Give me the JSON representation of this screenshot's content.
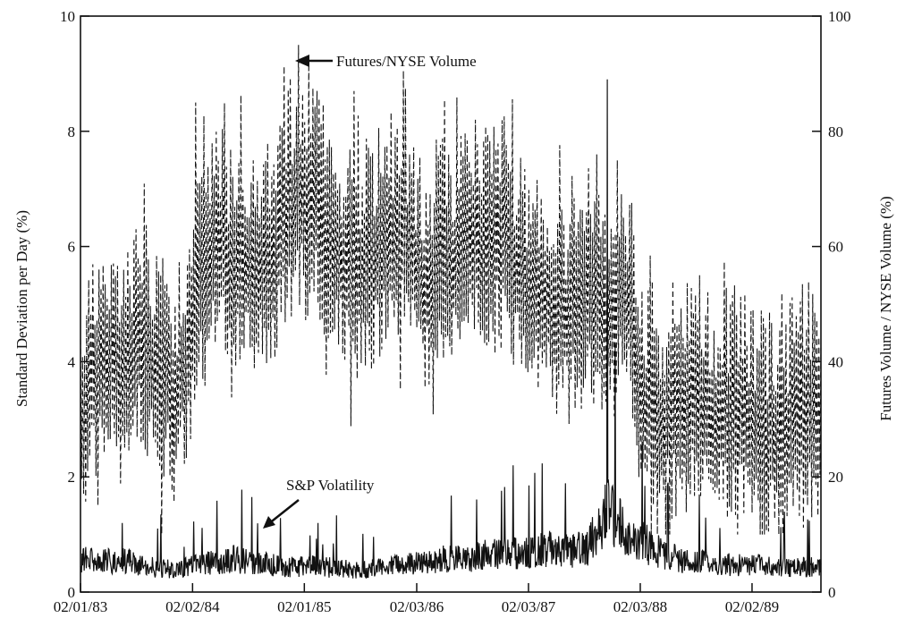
{
  "chart_data": {
    "type": "line",
    "left_axis": {
      "label": "Standard Deviation per Day (%)",
      "ylim": [
        0,
        10
      ],
      "ticks": [
        0,
        2,
        4,
        6,
        8,
        10
      ],
      "tick_labels": [
        "0",
        "2",
        "4",
        "6",
        "8",
        "10"
      ]
    },
    "right_axis": {
      "label": "Futures Volume / NYSE Volume (%)",
      "ylim": [
        0,
        100
      ],
      "ticks": [
        0,
        20,
        40,
        60,
        80,
        100
      ],
      "tick_labels": [
        "0",
        "20",
        "40",
        "60",
        "80",
        "100"
      ]
    },
    "x_axis": {
      "ticks": [
        "1983-02-01",
        "1984-02-02",
        "1985-02-01",
        "1986-02-03",
        "1987-02-03",
        "1988-02-03",
        "1989-02-02"
      ],
      "tick_labels": [
        "02/01/83",
        "02/02/84",
        "02/01/85",
        "02/03/86",
        "02/03/87",
        "02/03/88",
        "02/02/89"
      ],
      "xlim": [
        "1983-02-01",
        "1989-09-15"
      ]
    },
    "grid": false,
    "series": [
      {
        "name": "Futures/NYSE Volume",
        "axis": "right",
        "style": "dashed",
        "x": [
          "1983-02",
          "1983-04",
          "1983-06",
          "1983-08",
          "1983-10",
          "1983-12",
          "1984-02",
          "1984-04",
          "1984-06",
          "1984-08",
          "1984-10",
          "1984-12",
          "1985-02",
          "1985-04",
          "1985-06",
          "1985-08",
          "1985-10",
          "1985-12",
          "1986-02",
          "1986-04",
          "1986-06",
          "1986-08",
          "1986-10",
          "1986-12",
          "1987-02",
          "1987-04",
          "1987-06",
          "1987-08",
          "1987-10",
          "1987-12",
          "1988-02",
          "1988-04",
          "1988-06",
          "1988-08",
          "1988-10",
          "1988-12",
          "1989-02",
          "1989-04",
          "1989-06",
          "1989-08"
        ],
        "values": [
          32,
          40,
          35,
          42,
          36,
          33,
          48,
          58,
          55,
          57,
          56,
          64,
          68,
          60,
          55,
          52,
          58,
          62,
          52,
          54,
          56,
          58,
          60,
          56,
          50,
          48,
          46,
          50,
          44,
          52,
          30,
          28,
          30,
          32,
          28,
          30,
          26,
          25,
          27,
          28
        ],
        "peaks": [
          {
            "x": "1984-02",
            "value": 85
          },
          {
            "x": "1985-01",
            "value": 95
          },
          {
            "x": "1985-07",
            "value": 87
          },
          {
            "x": "1986-08",
            "value": 82
          },
          {
            "x": "1987-09",
            "value": 76
          },
          {
            "x": "1988-03",
            "value": 54
          }
        ]
      },
      {
        "name": "S&P Volatility",
        "axis": "left",
        "style": "solid",
        "x": [
          "1983-02",
          "1983-04",
          "1983-06",
          "1983-08",
          "1983-10",
          "1983-12",
          "1984-02",
          "1984-04",
          "1984-06",
          "1984-08",
          "1984-10",
          "1984-12",
          "1985-02",
          "1985-04",
          "1985-06",
          "1985-08",
          "1985-10",
          "1985-12",
          "1986-02",
          "1986-04",
          "1986-06",
          "1986-08",
          "1986-10",
          "1986-12",
          "1987-02",
          "1987-04",
          "1987-06",
          "1987-08",
          "1987-10",
          "1987-12",
          "1988-02",
          "1988-04",
          "1988-06",
          "1988-08",
          "1988-10",
          "1988-12",
          "1989-02",
          "1989-04",
          "1989-06",
          "1989-08"
        ],
        "values": [
          0.6,
          0.55,
          0.6,
          0.5,
          0.45,
          0.4,
          0.5,
          0.55,
          0.6,
          0.55,
          0.5,
          0.45,
          0.5,
          0.45,
          0.45,
          0.4,
          0.45,
          0.5,
          0.55,
          0.6,
          0.6,
          0.65,
          0.7,
          0.7,
          0.75,
          0.8,
          0.75,
          0.8,
          1.5,
          1.1,
          0.9,
          0.7,
          0.6,
          0.55,
          0.5,
          0.5,
          0.5,
          0.45,
          0.45,
          0.45
        ],
        "peaks": [
          {
            "x": "1984-08",
            "value": 1.65
          },
          {
            "x": "1986-12",
            "value": 2.2
          },
          {
            "x": "1987-10-19",
            "value": 8.9
          },
          {
            "x": "1987-11",
            "value": 4.3
          }
        ]
      }
    ],
    "annotations": [
      {
        "text": "Futures/NYSE Volume",
        "target_series": "Futures/NYSE Volume",
        "arrow": true
      },
      {
        "text": "S&P Volatility",
        "target_series": "S&P Volatility",
        "arrow": true
      }
    ]
  }
}
